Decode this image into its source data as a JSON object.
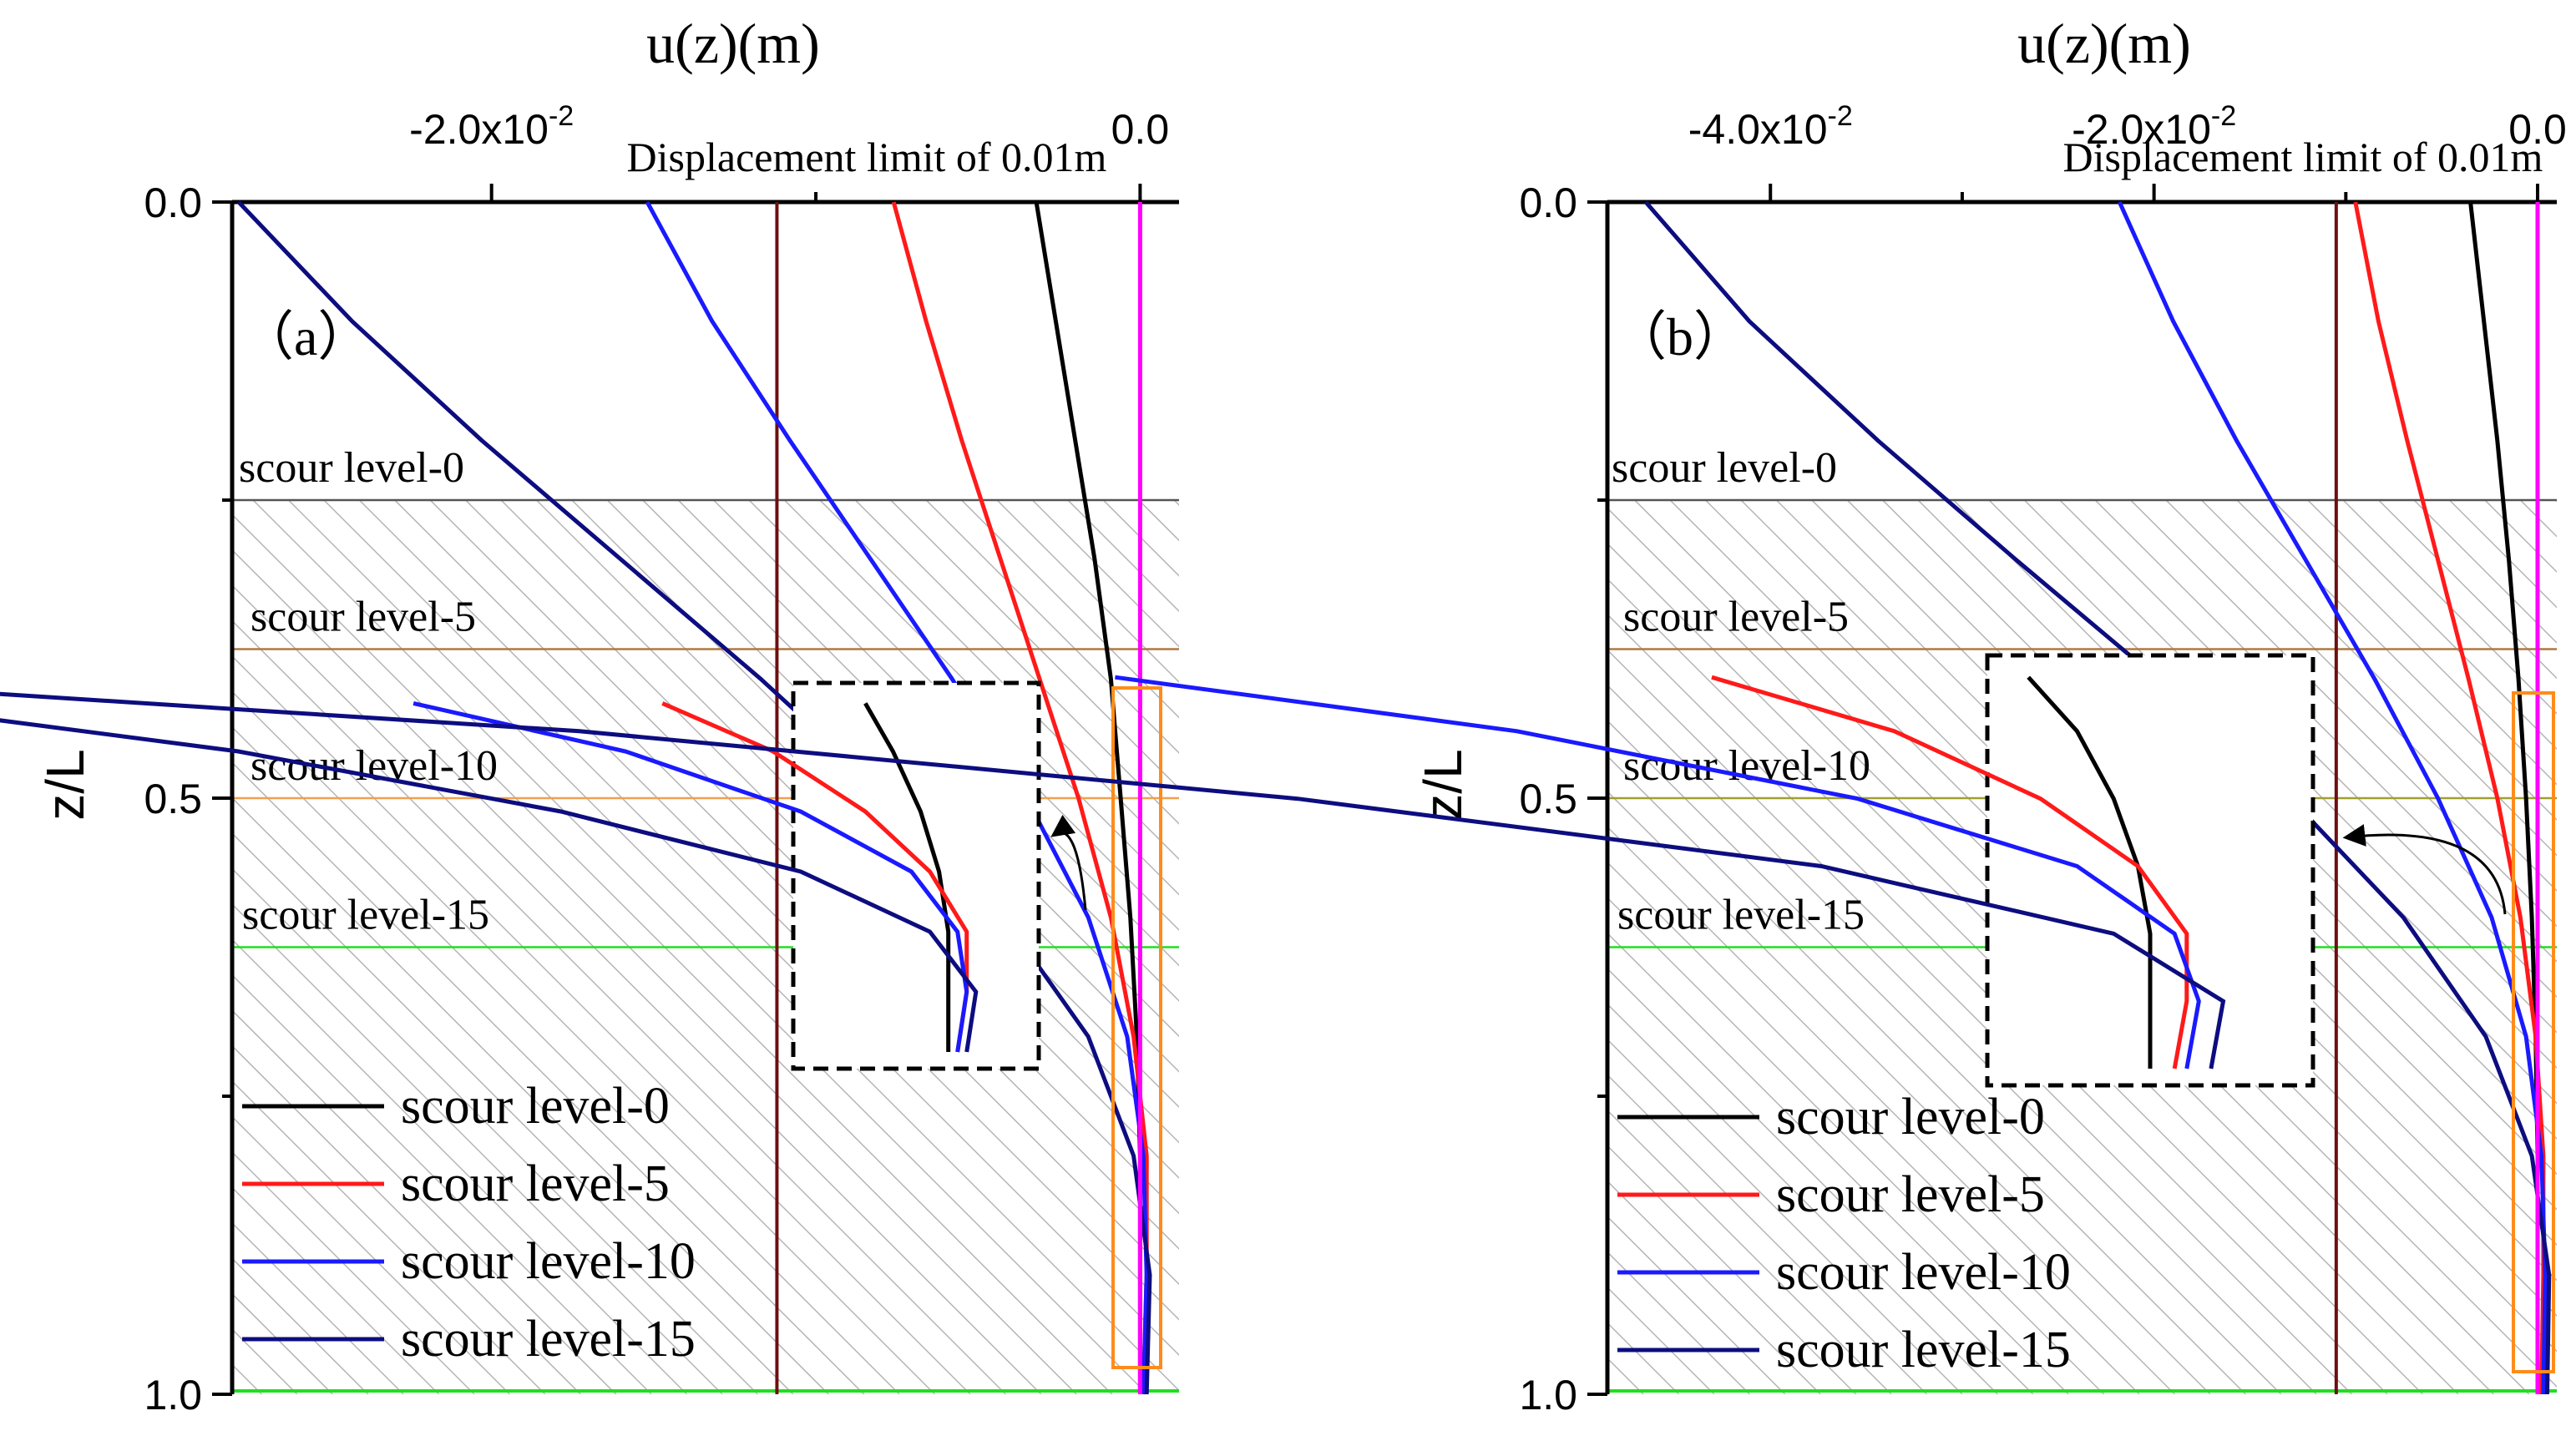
{
  "chart_data": [
    {
      "type": "line",
      "panel_label": "（a）",
      "xlabel": "u(z)(m)",
      "ylabel": "z/L",
      "xlim": [
        -0.028,
        0.0012
      ],
      "ylim": [
        0.0,
        1.0
      ],
      "y_inverted": true,
      "x_axis_position": "top",
      "x_ticks": [
        {
          "value": -0.02,
          "base": "-2.0x10",
          "exp": "-2"
        },
        {
          "value": 0.0,
          "base": "0.0",
          "exp": ""
        }
      ],
      "y_ticks": [
        {
          "value": 0.0,
          "label": "0.0"
        },
        {
          "value": 0.5,
          "label": "0.5"
        },
        {
          "value": 1.0,
          "label": "1.0"
        }
      ],
      "limit_line": {
        "value": -0.0112,
        "label": "Displacement limit of 0.01m",
        "color": "#6e0f0f"
      },
      "scour_levels": [
        {
          "label": "scour level-0",
          "z": 0.25,
          "color": "#555555"
        },
        {
          "label": "scour level-5",
          "z": 0.375,
          "color": "#b07840"
        },
        {
          "label": "scour level-10",
          "z": 0.5,
          "color": "#f0a050"
        },
        {
          "label": "scour level-15",
          "z": 0.625,
          "color": "#22dd22"
        }
      ],
      "series": [
        {
          "name": "scour level-0",
          "color": "#000000",
          "x": [
            -0.0032,
            -0.0026,
            -0.002,
            -0.0014,
            -0.0009,
            -0.0006,
            -0.0003,
            -0.0001,
            0.0,
            0.0,
            0.0
          ],
          "z": [
            0.0,
            0.1,
            0.2,
            0.3,
            0.4,
            0.5,
            0.6,
            0.7,
            0.8,
            0.9,
            1.0
          ]
        },
        {
          "name": "scour level-5",
          "color": "#ff1a1a",
          "x": [
            -0.0076,
            -0.0066,
            -0.0055,
            -0.0043,
            -0.0031,
            -0.0019,
            -0.0009,
            -0.0002,
            0.0002,
            0.0002,
            0.0001
          ],
          "z": [
            0.0,
            0.1,
            0.2,
            0.3,
            0.4,
            0.5,
            0.6,
            0.7,
            0.8,
            0.9,
            1.0
          ]
        },
        {
          "name": "scour level-10",
          "color": "#1a1aff",
          "x": [
            -0.0152,
            -0.0132,
            -0.0108,
            -0.0083,
            -0.0058,
            -0.0035,
            -0.0016,
            -0.0004,
            0.0001,
            0.0002,
            0.0001
          ],
          "z": [
            0.0,
            0.1,
            0.2,
            0.3,
            0.4,
            0.5,
            0.6,
            0.7,
            0.8,
            0.9,
            1.0
          ]
        },
        {
          "name": "scour level-15",
          "color": "#0d0d80",
          "x": [
            -0.0278,
            -0.0243,
            -0.0203,
            -0.016,
            -0.0117,
            -0.0077,
            -0.0042,
            -0.0016,
            -0.0002,
            0.0003,
            0.0002
          ],
          "z": [
            0.0,
            0.1,
            0.2,
            0.3,
            0.4,
            0.5,
            0.6,
            0.7,
            0.8,
            0.9,
            1.0
          ]
        },
        {
          "name": "",
          "color": "#ff00ff",
          "x": [
            0.0,
            0.0
          ],
          "z": [
            0.0,
            1.0
          ]
        }
      ],
      "legend": {
        "position": "bottom-left",
        "items": [
          "scour level-0",
          "scour level-5",
          "scour level-10",
          "scour level-15"
        ]
      }
    },
    {
      "type": "line",
      "panel_label": "（b）",
      "xlabel": "u(z)(m)",
      "ylabel": "z/L",
      "xlim": [
        -0.0485,
        0.001
      ],
      "ylim": [
        0.0,
        1.0
      ],
      "y_inverted": true,
      "x_axis_position": "top",
      "x_ticks": [
        {
          "value": -0.04,
          "base": "-4.0x10",
          "exp": "-2"
        },
        {
          "value": -0.02,
          "base": "-2.0x10",
          "exp": "-2"
        },
        {
          "value": 0.0,
          "base": "0.0",
          "exp": ""
        }
      ],
      "y_ticks": [
        {
          "value": 0.0,
          "label": "0.0"
        },
        {
          "value": 0.5,
          "label": "0.5"
        },
        {
          "value": 1.0,
          "label": "1.0"
        }
      ],
      "limit_line": {
        "value": -0.0105,
        "label": "Displacement limit of 0.01m",
        "color": "#6e0f0f"
      },
      "scour_levels": [
        {
          "label": "scour level-0",
          "z": 0.25,
          "color": "#555555"
        },
        {
          "label": "scour level-5",
          "z": 0.375,
          "color": "#b07840"
        },
        {
          "label": "scour level-10",
          "z": 0.5,
          "color": "#a0a030"
        },
        {
          "label": "scour level-15",
          "z": 0.625,
          "color": "#22dd22"
        }
      ],
      "series": [
        {
          "name": "scour level-0",
          "color": "#000000",
          "x": [
            -0.0035,
            -0.0028,
            -0.0021,
            -0.0015,
            -0.001,
            -0.0006,
            -0.0003,
            -0.0001,
            0.0,
            0.0,
            0.0
          ],
          "z": [
            0.0,
            0.1,
            0.2,
            0.3,
            0.4,
            0.5,
            0.6,
            0.7,
            0.8,
            0.9,
            1.0
          ]
        },
        {
          "name": "scour level-5",
          "color": "#ff1a1a",
          "x": [
            -0.0095,
            -0.0083,
            -0.0068,
            -0.0052,
            -0.0036,
            -0.0021,
            -0.0009,
            -0.0001,
            0.0003,
            0.0003,
            0.0002
          ],
          "z": [
            0.0,
            0.1,
            0.2,
            0.3,
            0.4,
            0.5,
            0.6,
            0.7,
            0.8,
            0.9,
            1.0
          ]
        },
        {
          "name": "scour level-10",
          "color": "#1a1aff",
          "x": [
            -0.0218,
            -0.019,
            -0.0157,
            -0.0121,
            -0.0085,
            -0.0052,
            -0.0024,
            -0.0006,
            0.0002,
            0.0004,
            0.0003
          ],
          "z": [
            0.0,
            0.1,
            0.2,
            0.3,
            0.4,
            0.5,
            0.6,
            0.7,
            0.8,
            0.9,
            1.0
          ]
        },
        {
          "name": "scour level-15",
          "color": "#0d0d80",
          "x": [
            -0.0465,
            -0.0411,
            -0.0344,
            -0.0272,
            -0.0198,
            -0.0129,
            -0.007,
            -0.0027,
            -0.0003,
            0.0006,
            0.0005
          ],
          "z": [
            0.0,
            0.1,
            0.2,
            0.3,
            0.4,
            0.5,
            0.6,
            0.7,
            0.8,
            0.9,
            1.0
          ]
        },
        {
          "name": "",
          "color": "#ff00ff",
          "x": [
            0.0,
            0.0
          ],
          "z": [
            0.0,
            1.0
          ]
        }
      ],
      "legend": {
        "position": "bottom-left",
        "items": [
          "scour level-0",
          "scour level-5",
          "scour level-10",
          "scour level-15"
        ]
      }
    }
  ]
}
